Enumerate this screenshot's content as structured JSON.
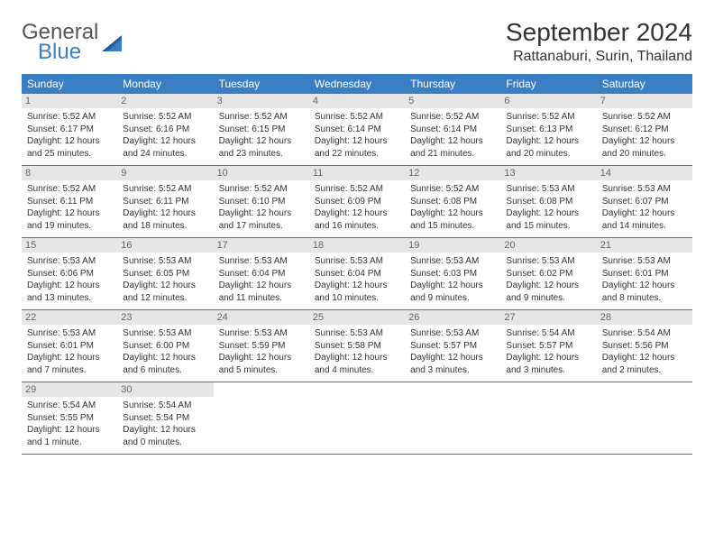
{
  "logo": {
    "text1": "General",
    "text2": "Blue"
  },
  "title": "September 2024",
  "location": "Rattanaburi, Surin, Thailand",
  "dayNames": [
    "Sunday",
    "Monday",
    "Tuesday",
    "Wednesday",
    "Thursday",
    "Friday",
    "Saturday"
  ],
  "colors": {
    "headerBg": "#3a7fc4",
    "headerText": "#ffffff",
    "dayNumBg": "#e6e6e6",
    "borderColor": "#3a7fc4",
    "bodyText": "#333333"
  },
  "weeks": [
    [
      {
        "n": "1",
        "sr": "Sunrise: 5:52 AM",
        "ss": "Sunset: 6:17 PM",
        "d1": "Daylight: 12 hours",
        "d2": "and 25 minutes."
      },
      {
        "n": "2",
        "sr": "Sunrise: 5:52 AM",
        "ss": "Sunset: 6:16 PM",
        "d1": "Daylight: 12 hours",
        "d2": "and 24 minutes."
      },
      {
        "n": "3",
        "sr": "Sunrise: 5:52 AM",
        "ss": "Sunset: 6:15 PM",
        "d1": "Daylight: 12 hours",
        "d2": "and 23 minutes."
      },
      {
        "n": "4",
        "sr": "Sunrise: 5:52 AM",
        "ss": "Sunset: 6:14 PM",
        "d1": "Daylight: 12 hours",
        "d2": "and 22 minutes."
      },
      {
        "n": "5",
        "sr": "Sunrise: 5:52 AM",
        "ss": "Sunset: 6:14 PM",
        "d1": "Daylight: 12 hours",
        "d2": "and 21 minutes."
      },
      {
        "n": "6",
        "sr": "Sunrise: 5:52 AM",
        "ss": "Sunset: 6:13 PM",
        "d1": "Daylight: 12 hours",
        "d2": "and 20 minutes."
      },
      {
        "n": "7",
        "sr": "Sunrise: 5:52 AM",
        "ss": "Sunset: 6:12 PM",
        "d1": "Daylight: 12 hours",
        "d2": "and 20 minutes."
      }
    ],
    [
      {
        "n": "8",
        "sr": "Sunrise: 5:52 AM",
        "ss": "Sunset: 6:11 PM",
        "d1": "Daylight: 12 hours",
        "d2": "and 19 minutes."
      },
      {
        "n": "9",
        "sr": "Sunrise: 5:52 AM",
        "ss": "Sunset: 6:11 PM",
        "d1": "Daylight: 12 hours",
        "d2": "and 18 minutes."
      },
      {
        "n": "10",
        "sr": "Sunrise: 5:52 AM",
        "ss": "Sunset: 6:10 PM",
        "d1": "Daylight: 12 hours",
        "d2": "and 17 minutes."
      },
      {
        "n": "11",
        "sr": "Sunrise: 5:52 AM",
        "ss": "Sunset: 6:09 PM",
        "d1": "Daylight: 12 hours",
        "d2": "and 16 minutes."
      },
      {
        "n": "12",
        "sr": "Sunrise: 5:52 AM",
        "ss": "Sunset: 6:08 PM",
        "d1": "Daylight: 12 hours",
        "d2": "and 15 minutes."
      },
      {
        "n": "13",
        "sr": "Sunrise: 5:53 AM",
        "ss": "Sunset: 6:08 PM",
        "d1": "Daylight: 12 hours",
        "d2": "and 15 minutes."
      },
      {
        "n": "14",
        "sr": "Sunrise: 5:53 AM",
        "ss": "Sunset: 6:07 PM",
        "d1": "Daylight: 12 hours",
        "d2": "and 14 minutes."
      }
    ],
    [
      {
        "n": "15",
        "sr": "Sunrise: 5:53 AM",
        "ss": "Sunset: 6:06 PM",
        "d1": "Daylight: 12 hours",
        "d2": "and 13 minutes."
      },
      {
        "n": "16",
        "sr": "Sunrise: 5:53 AM",
        "ss": "Sunset: 6:05 PM",
        "d1": "Daylight: 12 hours",
        "d2": "and 12 minutes."
      },
      {
        "n": "17",
        "sr": "Sunrise: 5:53 AM",
        "ss": "Sunset: 6:04 PM",
        "d1": "Daylight: 12 hours",
        "d2": "and 11 minutes."
      },
      {
        "n": "18",
        "sr": "Sunrise: 5:53 AM",
        "ss": "Sunset: 6:04 PM",
        "d1": "Daylight: 12 hours",
        "d2": "and 10 minutes."
      },
      {
        "n": "19",
        "sr": "Sunrise: 5:53 AM",
        "ss": "Sunset: 6:03 PM",
        "d1": "Daylight: 12 hours",
        "d2": "and 9 minutes."
      },
      {
        "n": "20",
        "sr": "Sunrise: 5:53 AM",
        "ss": "Sunset: 6:02 PM",
        "d1": "Daylight: 12 hours",
        "d2": "and 9 minutes."
      },
      {
        "n": "21",
        "sr": "Sunrise: 5:53 AM",
        "ss": "Sunset: 6:01 PM",
        "d1": "Daylight: 12 hours",
        "d2": "and 8 minutes."
      }
    ],
    [
      {
        "n": "22",
        "sr": "Sunrise: 5:53 AM",
        "ss": "Sunset: 6:01 PM",
        "d1": "Daylight: 12 hours",
        "d2": "and 7 minutes."
      },
      {
        "n": "23",
        "sr": "Sunrise: 5:53 AM",
        "ss": "Sunset: 6:00 PM",
        "d1": "Daylight: 12 hours",
        "d2": "and 6 minutes."
      },
      {
        "n": "24",
        "sr": "Sunrise: 5:53 AM",
        "ss": "Sunset: 5:59 PM",
        "d1": "Daylight: 12 hours",
        "d2": "and 5 minutes."
      },
      {
        "n": "25",
        "sr": "Sunrise: 5:53 AM",
        "ss": "Sunset: 5:58 PM",
        "d1": "Daylight: 12 hours",
        "d2": "and 4 minutes."
      },
      {
        "n": "26",
        "sr": "Sunrise: 5:53 AM",
        "ss": "Sunset: 5:57 PM",
        "d1": "Daylight: 12 hours",
        "d2": "and 3 minutes."
      },
      {
        "n": "27",
        "sr": "Sunrise: 5:54 AM",
        "ss": "Sunset: 5:57 PM",
        "d1": "Daylight: 12 hours",
        "d2": "and 3 minutes."
      },
      {
        "n": "28",
        "sr": "Sunrise: 5:54 AM",
        "ss": "Sunset: 5:56 PM",
        "d1": "Daylight: 12 hours",
        "d2": "and 2 minutes."
      }
    ],
    [
      {
        "n": "29",
        "sr": "Sunrise: 5:54 AM",
        "ss": "Sunset: 5:55 PM",
        "d1": "Daylight: 12 hours",
        "d2": "and 1 minute."
      },
      {
        "n": "30",
        "sr": "Sunrise: 5:54 AM",
        "ss": "Sunset: 5:54 PM",
        "d1": "Daylight: 12 hours",
        "d2": "and 0 minutes."
      },
      {
        "empty": true
      },
      {
        "empty": true
      },
      {
        "empty": true
      },
      {
        "empty": true
      },
      {
        "empty": true
      }
    ]
  ]
}
